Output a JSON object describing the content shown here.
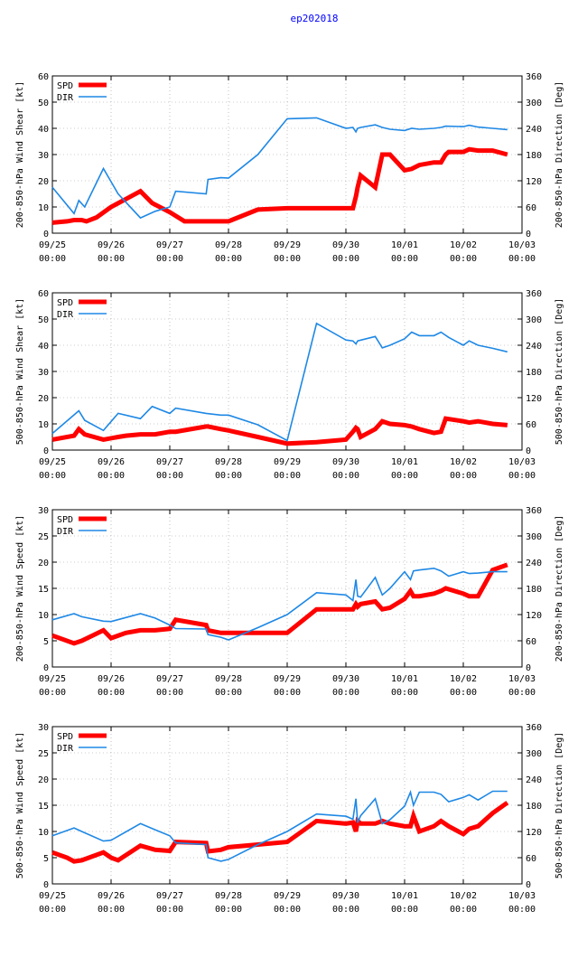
{
  "title": "ep202018",
  "colors": {
    "spd": "#ff0000",
    "dir": "#1e88e5",
    "title": "#0000ff",
    "axis": "#000000",
    "grid": "#9a9a9a"
  },
  "chart_data": [
    {
      "type": "line",
      "ylabel_left": "200-850-hPa Wind Shear [kt]",
      "ylabel_right": "200-850-hPa Direction [Deg]",
      "ylim_left": [
        0,
        60
      ],
      "yticks_left": [
        0,
        10,
        20,
        30,
        40,
        50,
        60
      ],
      "ylim_right": [
        0,
        360
      ],
      "yticks_right": [
        0,
        60,
        120,
        180,
        240,
        300,
        360
      ],
      "xlim": [
        0,
        8
      ],
      "xticks": [
        "09/25 00:00",
        "09/26 00:00",
        "09/27 00:00",
        "09/28 00:00",
        "09/29 00:00",
        "09/30 00:00",
        "10/01 00:00",
        "10/02 00:00",
        "10/03 00:00"
      ],
      "grid": true,
      "legend": "top-left",
      "series": [
        {
          "name": "SPD",
          "axis": "left",
          "x": [
            0.0,
            0.25,
            0.37,
            0.5,
            0.58,
            0.75,
            1.0,
            1.25,
            1.5,
            1.7,
            2.0,
            2.25,
            2.5,
            2.75,
            3.0,
            3.5,
            4.0,
            4.5,
            5.0,
            5.12,
            5.17,
            5.2,
            5.25,
            5.5,
            5.62,
            5.75,
            6.0,
            6.12,
            6.25,
            6.5,
            6.62,
            6.7,
            6.75,
            7.0,
            7.1,
            7.25,
            7.5,
            7.75
          ],
          "values": [
            4,
            4.5,
            5,
            5,
            4.5,
            6,
            10,
            13,
            16,
            11.5,
            8,
            4.5,
            4.5,
            4.5,
            4.5,
            9,
            9.5,
            9.5,
            9.5,
            9.5,
            14,
            17.5,
            22,
            17.5,
            30,
            30,
            24,
            24.5,
            26,
            27,
            27,
            30,
            31,
            31,
            32,
            31.5,
            31.5,
            30
          ]
        },
        {
          "name": "DIR",
          "axis": "right",
          "x": [
            0.0,
            0.37,
            0.45,
            0.55,
            0.87,
            1.12,
            1.5,
            1.75,
            2.0,
            2.1,
            2.62,
            2.65,
            2.87,
            3.0,
            3.5,
            4.0,
            4.5,
            5.0,
            5.12,
            5.17,
            5.2,
            5.25,
            5.5,
            5.62,
            5.75,
            6.0,
            6.12,
            6.25,
            6.5,
            6.62,
            6.7,
            7.0,
            7.1,
            7.25,
            7.5,
            7.75
          ],
          "values": [
            105,
            45,
            75,
            60,
            148,
            90,
            35,
            50,
            60,
            96,
            90,
            123,
            127,
            126,
            180,
            262,
            264,
            240,
            242,
            232,
            240,
            242,
            248,
            242,
            238,
            235,
            240,
            238,
            240,
            242,
            245,
            244,
            247,
            243,
            240,
            237
          ]
        }
      ]
    },
    {
      "type": "line",
      "ylabel_left": "500-850-hPa Wind Shear [kt]",
      "ylabel_right": "500-850-hPa Direction [Deg]",
      "ylim_left": [
        0,
        60
      ],
      "yticks_left": [
        0,
        10,
        20,
        30,
        40,
        50,
        60
      ],
      "ylim_right": [
        0,
        360
      ],
      "yticks_right": [
        0,
        60,
        120,
        180,
        240,
        300,
        360
      ],
      "xlim": [
        0,
        8
      ],
      "xticks": [
        "09/25 00:00",
        "09/26 00:00",
        "09/27 00:00",
        "09/28 00:00",
        "09/29 00:00",
        "09/30 00:00",
        "10/01 00:00",
        "10/02 00:00",
        "10/03 00:00"
      ],
      "grid": true,
      "legend": "top-left",
      "series": [
        {
          "name": "SPD",
          "axis": "left",
          "x": [
            0.0,
            0.37,
            0.45,
            0.55,
            0.87,
            1.12,
            1.25,
            1.5,
            1.75,
            2.0,
            2.1,
            2.62,
            2.65,
            2.87,
            3.0,
            3.5,
            4.0,
            4.5,
            5.0,
            5.12,
            5.17,
            5.2,
            5.25,
            5.5,
            5.62,
            5.75,
            6.0,
            6.12,
            6.25,
            6.5,
            6.62,
            6.7,
            7.0,
            7.1,
            7.25,
            7.5,
            7.75
          ],
          "values": [
            4,
            5.5,
            8,
            6,
            4,
            5,
            5.5,
            6,
            6,
            7,
            7,
            9,
            9,
            8,
            7.5,
            5,
            2.5,
            3,
            4,
            7,
            8.5,
            8,
            5,
            8,
            11,
            10,
            9.5,
            9,
            8,
            6.5,
            7,
            12,
            11,
            10.5,
            11,
            10,
            9.5
          ]
        },
        {
          "name": "DIR",
          "axis": "right",
          "x": [
            0.0,
            0.45,
            0.55,
            0.87,
            1.12,
            1.5,
            1.7,
            2.0,
            2.1,
            2.62,
            2.87,
            3.0,
            3.5,
            4.0,
            4.5,
            5.0,
            5.12,
            5.17,
            5.2,
            5.5,
            5.62,
            5.75,
            6.0,
            6.12,
            6.25,
            6.5,
            6.62,
            6.75,
            7.0,
            7.1,
            7.25,
            7.5,
            7.75
          ],
          "values": [
            38,
            90,
            68,
            45,
            84,
            72,
            100,
            84,
            96,
            84,
            80,
            80,
            58,
            22,
            290,
            252,
            250,
            243,
            250,
            260,
            234,
            240,
            255,
            270,
            262,
            262,
            270,
            258,
            240,
            250,
            240,
            233,
            225
          ]
        }
      ]
    },
    {
      "type": "line",
      "ylabel_left": "200-850-hPa Wind Speed [kt]",
      "ylabel_right": "200-850-hPa Direction [Deg]",
      "ylim_left": [
        0,
        30
      ],
      "yticks_left": [
        0,
        5,
        10,
        15,
        20,
        25,
        30
      ],
      "ylim_right": [
        0,
        360
      ],
      "yticks_right": [
        0,
        60,
        120,
        180,
        240,
        300,
        360
      ],
      "xlim": [
        0,
        8
      ],
      "xticks": [
        "09/25 00:00",
        "09/26 00:00",
        "09/27 00:00",
        "09/28 00:00",
        "09/29 00:00",
        "09/30 00:00",
        "10/01 00:00",
        "10/02 00:00",
        "10/03 00:00"
      ],
      "grid": true,
      "legend": "top-left",
      "series": [
        {
          "name": "SPD",
          "axis": "left",
          "x": [
            0.0,
            0.37,
            0.5,
            0.87,
            1.0,
            1.25,
            1.5,
            1.75,
            2.0,
            2.1,
            2.62,
            2.65,
            2.87,
            3.0,
            3.5,
            4.0,
            4.5,
            5.0,
            5.12,
            5.17,
            5.2,
            5.25,
            5.5,
            5.62,
            5.75,
            6.0,
            6.1,
            6.15,
            6.25,
            6.5,
            6.62,
            6.7,
            7.0,
            7.1,
            7.25,
            7.5,
            7.75
          ],
          "values": [
            6,
            4.5,
            5,
            7,
            5.5,
            6.5,
            7,
            7,
            7.3,
            9,
            8,
            7,
            6.5,
            6.5,
            6.5,
            6.5,
            11,
            11,
            11,
            12,
            11.5,
            12,
            12.5,
            11,
            11.3,
            13,
            14.5,
            13.5,
            13.5,
            14,
            14.5,
            15,
            14,
            13.5,
            13.5,
            18.5,
            19.5
          ]
        },
        {
          "name": "DIR",
          "axis": "right",
          "x": [
            0.0,
            0.37,
            0.5,
            0.87,
            1.0,
            1.5,
            1.75,
            2.0,
            2.1,
            2.62,
            2.65,
            2.87,
            3.0,
            3.5,
            4.0,
            4.5,
            5.0,
            5.12,
            5.17,
            5.2,
            5.25,
            5.5,
            5.62,
            5.75,
            6.0,
            6.1,
            6.15,
            6.25,
            6.5,
            6.62,
            6.75,
            7.0,
            7.1,
            7.25,
            7.5,
            7.75
          ],
          "values": [
            108,
            122,
            115,
            105,
            104,
            122,
            112,
            96,
            88,
            87,
            74,
            68,
            62,
            90,
            120,
            170,
            165,
            152,
            200,
            162,
            160,
            205,
            165,
            180,
            218,
            200,
            220,
            222,
            226,
            220,
            208,
            218,
            214,
            215,
            218,
            218
          ]
        }
      ]
    },
    {
      "type": "line",
      "ylabel_left": "500-850-hPa Wind Speed [kt]",
      "ylabel_right": "500-850-hPa Direction [Deg]",
      "ylim_left": [
        0,
        30
      ],
      "yticks_left": [
        0,
        5,
        10,
        15,
        20,
        25,
        30
      ],
      "ylim_right": [
        0,
        360
      ],
      "yticks_right": [
        0,
        60,
        120,
        180,
        240,
        300,
        360
      ],
      "xlim": [
        0,
        8
      ],
      "xticks": [
        "09/25 00:00",
        "09/26 00:00",
        "09/27 00:00",
        "09/28 00:00",
        "09/29 00:00",
        "09/30 00:00",
        "10/01 00:00",
        "10/02 00:00",
        "10/03 00:00"
      ],
      "grid": true,
      "legend": "top-left",
      "series": [
        {
          "name": "SPD",
          "axis": "left",
          "x": [
            0.0,
            0.25,
            0.37,
            0.5,
            0.87,
            1.0,
            1.12,
            1.5,
            1.75,
            2.0,
            2.1,
            2.62,
            2.65,
            2.87,
            3.0,
            3.5,
            4.0,
            4.5,
            5.0,
            5.12,
            5.17,
            5.2,
            5.25,
            5.5,
            5.62,
            5.75,
            6.0,
            6.1,
            6.15,
            6.25,
            6.5,
            6.62,
            6.75,
            7.0,
            7.1,
            7.25,
            7.5,
            7.75
          ],
          "values": [
            6,
            5,
            4.3,
            4.5,
            6,
            5,
            4.5,
            7.3,
            6.5,
            6.3,
            8,
            7.8,
            6.2,
            6.5,
            7,
            7.5,
            8,
            12,
            11.5,
            11.7,
            10,
            12,
            11.5,
            11.5,
            12,
            11.5,
            11,
            11,
            13,
            10,
            11,
            12,
            11,
            9.5,
            10.5,
            11,
            13.5,
            15.5
          ]
        },
        {
          "name": "DIR",
          "axis": "right",
          "x": [
            0.0,
            0.37,
            0.5,
            0.87,
            1.0,
            1.5,
            1.75,
            2.0,
            2.1,
            2.62,
            2.65,
            2.87,
            3.0,
            3.5,
            4.0,
            4.5,
            5.0,
            5.12,
            5.17,
            5.2,
            5.25,
            5.5,
            5.62,
            5.75,
            6.0,
            6.1,
            6.15,
            6.25,
            6.5,
            6.62,
            6.75,
            7.0,
            7.1,
            7.25,
            7.5,
            7.75
          ],
          "values": [
            110,
            128,
            120,
            98,
            100,
            138,
            124,
            110,
            94,
            90,
            60,
            52,
            56,
            90,
            120,
            160,
            155,
            148,
            195,
            140,
            156,
            195,
            138,
            147,
            178,
            210,
            180,
            210,
            210,
            205,
            188,
            198,
            204,
            192,
            212,
            212
          ]
        }
      ]
    }
  ]
}
